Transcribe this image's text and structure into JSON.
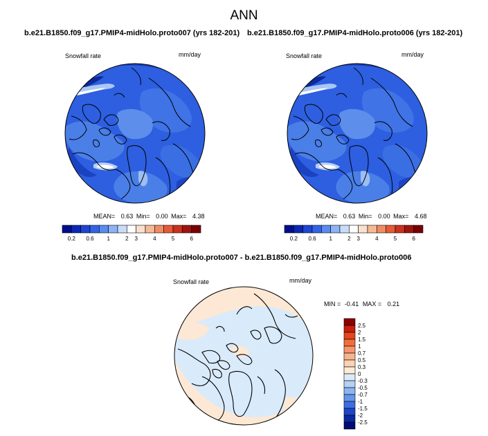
{
  "figure_title": "ANN",
  "panels": [
    {
      "id": "proto007",
      "case_title": "b.e21.B1850.f09_g17.PMIP4-midHolo.proto007 (yrs 182-201)",
      "left_label": "Snowfall rate",
      "units": "mm/day",
      "stats": {
        "mean_label": "MEAN=",
        "mean": "0.63",
        "min_label": "Min=",
        "min": "0.00",
        "max_label": "Max=",
        "max": "4.38"
      },
      "colorbar": {
        "tick_labels": [
          "0.2",
          "0.6",
          "1",
          "2",
          "3",
          "4",
          "5",
          "6"
        ],
        "colors": [
          "#000e8c",
          "#0a28b4",
          "#1e46d2",
          "#3264e6",
          "#5a8cf0",
          "#8cb4f5",
          "#c8dcfa",
          "#ffffff",
          "#fae1cd",
          "#f5b996",
          "#f08c64",
          "#e65a37",
          "#c8321e",
          "#a0140f",
          "#780000"
        ]
      }
    },
    {
      "id": "proto006",
      "case_title": "b.e21.B1850.f09_g17.PMIP4-midHolo.proto006 (yrs 182-201)",
      "left_label": "Snowfall rate",
      "units": "mm/day",
      "stats": {
        "mean_label": "MEAN=",
        "mean": "0.63",
        "min_label": "Min=",
        "min": "0.00",
        "max_label": "Max=",
        "max": "4.68"
      },
      "colorbar": {
        "tick_labels": [
          "0.2",
          "0.6",
          "1",
          "2",
          "3",
          "4",
          "5",
          "6"
        ],
        "colors": [
          "#000e8c",
          "#0a28b4",
          "#1e46d2",
          "#3264e6",
          "#5a8cf0",
          "#8cb4f5",
          "#c8dcfa",
          "#ffffff",
          "#fae1cd",
          "#f5b996",
          "#f08c64",
          "#e65a37",
          "#c8321e",
          "#a0140f",
          "#780000"
        ]
      }
    }
  ],
  "difference": {
    "case_title": "b.e21.B1850.f09_g17.PMIP4-midHolo.proto007 - b.e21.B1850.f09_g17.PMIP4-midHolo.proto006",
    "left_label": "Snowfall rate",
    "units": "mm/day",
    "stats": {
      "min_label": "MIN =",
      "min": "-0.41",
      "max_label": "MAX =",
      "max": "0.21"
    },
    "colorbar": {
      "tick_labels": [
        "2.5",
        "2",
        "1.5",
        "1",
        "0.7",
        "0.5",
        "0.3",
        "0",
        "-0.3",
        "-0.5",
        "-0.7",
        "-1",
        "-1.5",
        "-2",
        "-2.5"
      ],
      "colors": [
        "#8c0000",
        "#c81e0a",
        "#e6461e",
        "#f06e3c",
        "#f5966e",
        "#f8b48c",
        "#fad2b4",
        "#fdebd7",
        "#dcebfa",
        "#b4d2f5",
        "#8cb4f0",
        "#6496eb",
        "#3c6ee1",
        "#1e46c8",
        "#0a28a0",
        "#000a78"
      ]
    },
    "field_colors": {
      "positive": "#fce8d4",
      "negative": "#d9eafa"
    }
  }
}
